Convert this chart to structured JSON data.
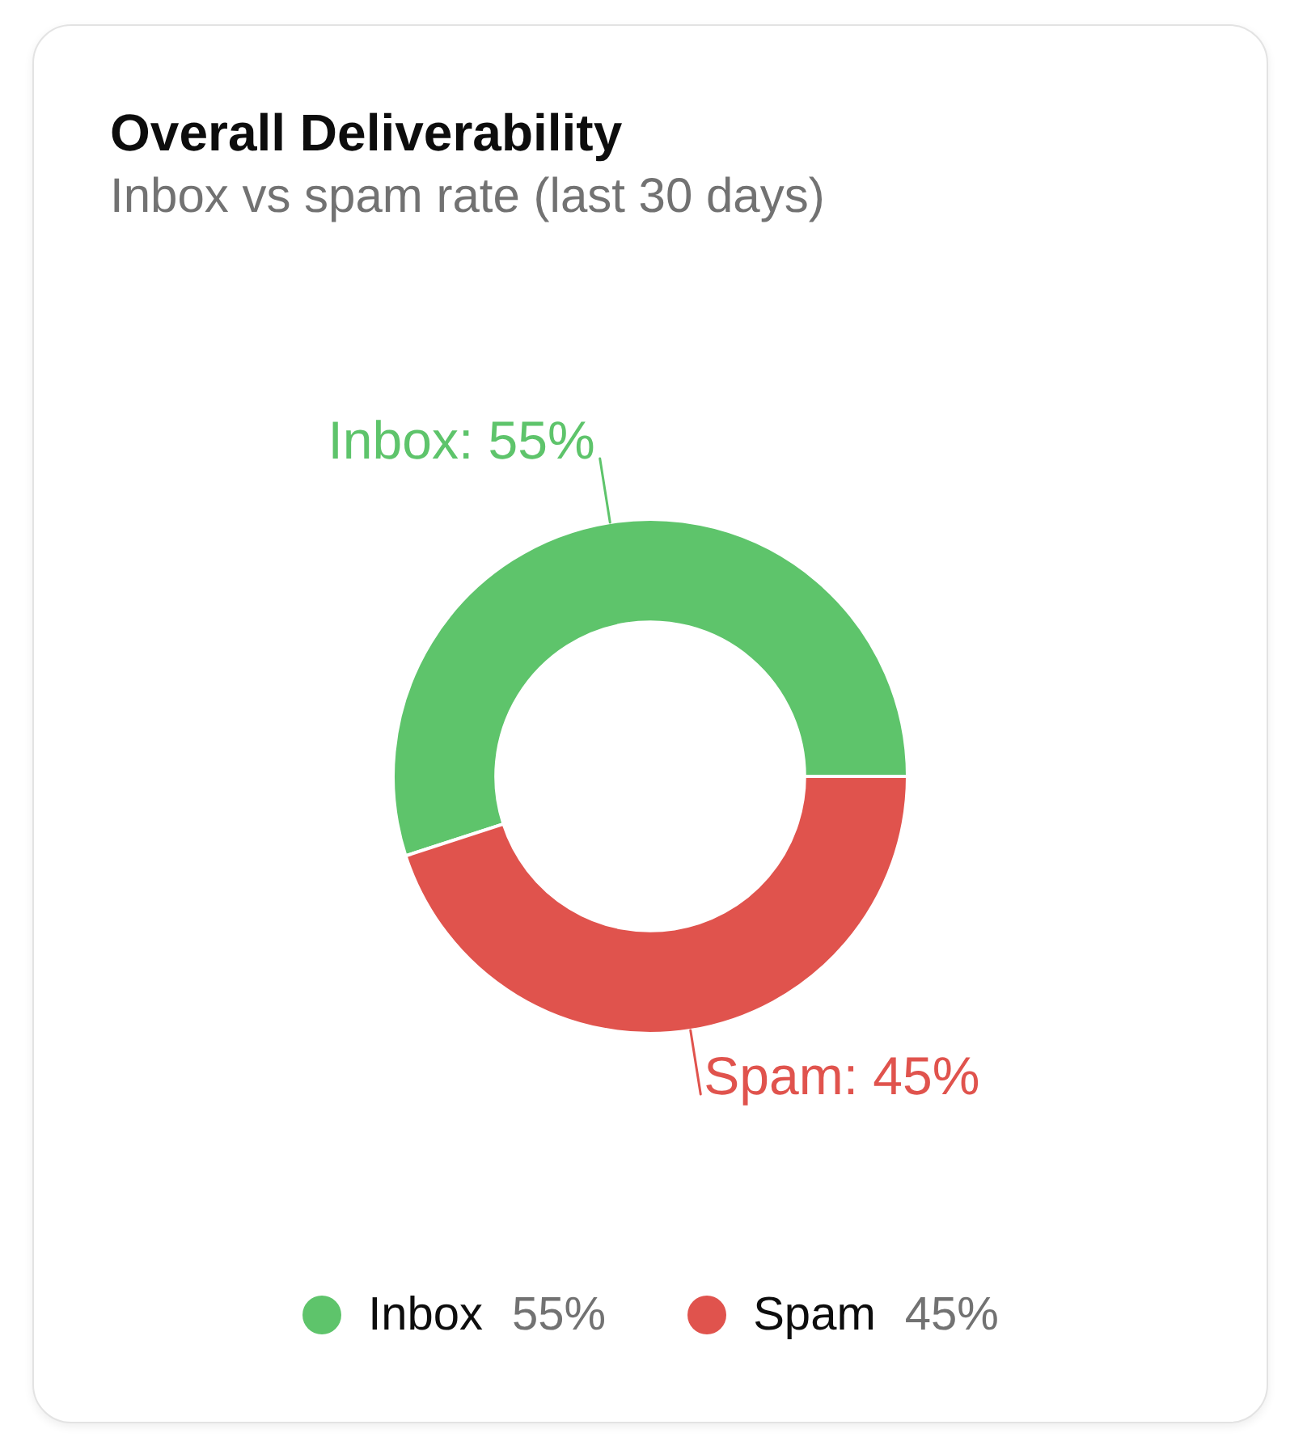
{
  "chart_data": {
    "type": "donut",
    "title": "Overall Deliverability",
    "subtitle": "Inbox vs spam rate (last 30 days)",
    "categories": [
      "Inbox",
      "Spam"
    ],
    "values": [
      55,
      45
    ],
    "colors": [
      "#5ec46b",
      "#e0534d"
    ],
    "value_labels": [
      "55%",
      "45%"
    ],
    "annotations": [
      "Inbox: 55%",
      "Spam: 45%"
    ],
    "legend": "bottom"
  }
}
